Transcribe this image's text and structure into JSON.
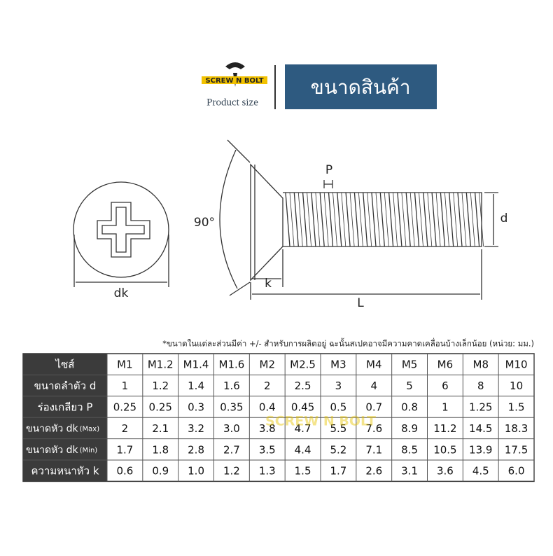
{
  "header": {
    "logo": "SCREW N BOLT",
    "subtitle": "Product size",
    "title": "ขนาดสินค้า"
  },
  "diagram": {
    "dk": "dk",
    "angle": "90°",
    "pitch": "P",
    "diameter": "d",
    "head_height": "k",
    "length": "L"
  },
  "note": "*ขนาดในแต่ละส่วนมีค่า  +/-  สำหรับการผลิตอยู่ ฉะนั้นสเปคอาจมีความคาดเคลื่อนบ้างเล็กน้อย (หน่วย: มม.)",
  "watermark": "SCREW N BOLT",
  "table": {
    "header": [
      "ไซส์",
      "M1",
      "M1.2",
      "M1.4",
      "M1.6",
      "M2",
      "M2.5",
      "M3",
      "M4",
      "M5",
      "M6",
      "M8",
      "M10"
    ],
    "rows": [
      {
        "label": "ขนาดลำตัว d",
        "cells": [
          "1",
          "1.2",
          "1.4",
          "1.6",
          "2",
          "2.5",
          "3",
          "4",
          "5",
          "6",
          "8",
          "10"
        ]
      },
      {
        "label": "ร่องเกลียว P",
        "cells": [
          "0.25",
          "0.25",
          "0.3",
          "0.35",
          "0.4",
          "0.45",
          "0.5",
          "0.7",
          "0.8",
          "1",
          "1.25",
          "1.5"
        ]
      },
      {
        "label": "ขนาดหัว dk",
        "sub": "(Max)",
        "cells": [
          "2",
          "2.1",
          "3.2",
          "3.0",
          "3.8",
          "4.7",
          "5.5",
          "7.6",
          "8.9",
          "11.2",
          "14.5",
          "18.3"
        ]
      },
      {
        "label": "ขนาดหัว dk",
        "sub": "(Min)",
        "cells": [
          "1.7",
          "1.8",
          "2.8",
          "2.7",
          "3.5",
          "4.4",
          "5.2",
          "7.1",
          "8.5",
          "10.5",
          "13.9",
          "17.5"
        ]
      },
      {
        "label": "ความหนาหัว k",
        "cells": [
          "0.6",
          "0.9",
          "1.0",
          "1.2",
          "1.3",
          "1.5",
          "1.7",
          "2.6",
          "3.1",
          "3.6",
          "4.5",
          "6.0"
        ]
      }
    ]
  }
}
